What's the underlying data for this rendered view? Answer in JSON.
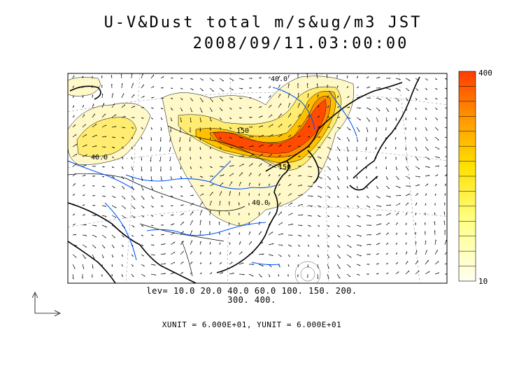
{
  "header": {
    "title": "U-V&Dust total m/s&ug/m3 JST",
    "datetime": "2008/09/11.03:00:00"
  },
  "footer": {
    "levels_line1": "lev= 10.0 20.0 40.0 60.0 100. 150. 200.",
    "levels_line2": "300. 400.",
    "units": "XUNIT = 6.000E+01, YUNIT = 6.000E+01"
  },
  "colorbar": {
    "max_label": "400",
    "min_label": "10",
    "colors": [
      "#fffff0",
      "#ffffd0",
      "#ffffaa",
      "#ffff80",
      "#ffff55",
      "#fff030",
      "#ffe000",
      "#ffcc00",
      "#ffb400",
      "#ff9a00",
      "#ff8000",
      "#ff6600",
      "#ff4e00",
      "#ff3a00"
    ]
  },
  "map": {
    "contour_labels": [
      "40.0",
      "150",
      "40.0",
      "40.0",
      "150"
    ],
    "colors": {
      "dust_low": "#fff8b0",
      "dust_mid": "#ffe040",
      "dust_high": "#ff7000",
      "dust_peak": "#ff3c00",
      "river": "#0055ff",
      "coast": "#000000"
    }
  }
}
